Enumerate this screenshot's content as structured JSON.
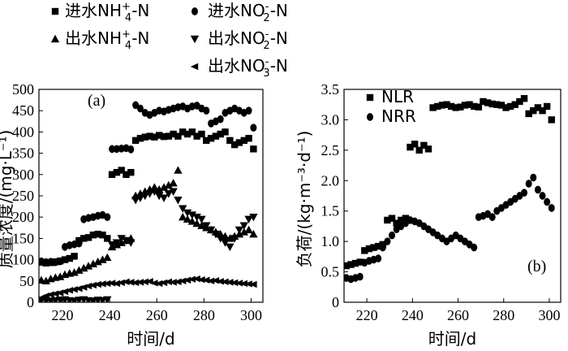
{
  "figure": {
    "panel_a_label": "(a)",
    "panel_b_label": "(b)"
  },
  "legend_a": [
    {
      "label_prefix": "进水NH",
      "sub": "4",
      "sup": "+",
      "suffix": "-N",
      "marker": "square"
    },
    {
      "label_prefix": "进水NO",
      "sub": "2",
      "sup": "-",
      "suffix": "-N",
      "marker": "circle"
    },
    {
      "label_prefix": "出水NH",
      "sub": "4",
      "sup": "+",
      "suffix": "-N",
      "marker": "triangle-up"
    },
    {
      "label_prefix": "出水NO",
      "sub": "2",
      "sup": "-",
      "suffix": "-N",
      "marker": "triangle-down"
    },
    {
      "label_prefix": "出水NO",
      "sub": "3",
      "sup": "-",
      "suffix": "-N",
      "marker": "triangle-left"
    }
  ],
  "legend_b": [
    {
      "label": "NLR",
      "marker": "square"
    },
    {
      "label": "NRR",
      "marker": "circle"
    }
  ],
  "chart_data": [
    {
      "type": "scatter",
      "panel": "(a)",
      "xlabel": "时间/d",
      "ylabel": "质量浓度/(mg·L⁻¹)",
      "xlim": [
        210,
        305
      ],
      "ylim": [
        0,
        500
      ],
      "xticks": [
        "220",
        "240",
        "260",
        "280",
        "300"
      ],
      "yticks": [
        "0",
        "50",
        "100",
        "150",
        "200",
        "250",
        "300",
        "350",
        "400",
        "450",
        "500"
      ],
      "series": [
        {
          "name": "进水NH4+-N",
          "marker": "square",
          "x": [
            211,
            213,
            215,
            217,
            219,
            221,
            223,
            225,
            227,
            229,
            231,
            233,
            235,
            237,
            239,
            241,
            243,
            245,
            247,
            249,
            251,
            253,
            255,
            257,
            259,
            261,
            263,
            265,
            267,
            269,
            271,
            273,
            275,
            277,
            279,
            281,
            283,
            285,
            287,
            289,
            291,
            293,
            295,
            297,
            299,
            301
          ],
          "y": [
            94,
            92,
            93,
            95,
            97,
            100,
            103,
            108,
            145,
            150,
            152,
            158,
            160,
            158,
            150,
            300,
            305,
            310,
            300,
            305,
            380,
            385,
            388,
            390,
            388,
            392,
            389,
            390,
            395,
            390,
            400,
            395,
            400,
            390,
            395,
            380,
            385,
            390,
            395,
            400,
            380,
            370,
            375,
            380,
            385,
            360
          ]
        },
        {
          "name": "进水NO2--N",
          "marker": "circle",
          "x": [
            211,
            213,
            215,
            217,
            219,
            221,
            223,
            225,
            227,
            229,
            231,
            233,
            235,
            237,
            239,
            241,
            243,
            245,
            247,
            249,
            251,
            253,
            255,
            257,
            259,
            261,
            263,
            265,
            267,
            269,
            271,
            273,
            275,
            277,
            279,
            281,
            283,
            285,
            287,
            289,
            291,
            293,
            295,
            297,
            299,
            301
          ],
          "y": [
            96,
            94,
            95,
            94,
            96,
            130,
            134,
            136,
            138,
            195,
            198,
            200,
            203,
            205,
            200,
            360,
            360,
            361,
            362,
            359,
            463,
            455,
            445,
            440,
            445,
            450,
            448,
            452,
            455,
            458,
            460,
            455,
            460,
            462,
            455,
            450,
            420,
            425,
            430,
            445,
            450,
            455,
            450,
            445,
            450,
            410
          ]
        },
        {
          "name": "出水NH4+-N",
          "marker": "triangle-up",
          "x": [
            211,
            213,
            215,
            217,
            219,
            221,
            223,
            225,
            227,
            229,
            231,
            233,
            235,
            237,
            239,
            241,
            243,
            245,
            247,
            249,
            251,
            253,
            255,
            257,
            259,
            261,
            263,
            265,
            267,
            269,
            271,
            273,
            275,
            277,
            279,
            281,
            283,
            285,
            287,
            289,
            291,
            293,
            295,
            297,
            299,
            301
          ],
          "y": [
            52,
            50,
            55,
            58,
            60,
            65,
            68,
            70,
            75,
            80,
            85,
            90,
            95,
            100,
            105,
            130,
            135,
            140,
            145,
            150,
            250,
            255,
            260,
            265,
            270,
            265,
            270,
            275,
            280,
            310,
            200,
            195,
            190,
            185,
            180,
            175,
            170,
            165,
            160,
            155,
            150,
            155,
            160,
            165,
            170,
            160
          ]
        },
        {
          "name": "出水NO2--N",
          "marker": "triangle-down",
          "x": [
            211,
            213,
            215,
            217,
            219,
            221,
            223,
            225,
            227,
            229,
            231,
            233,
            235,
            237,
            239,
            241,
            243,
            245,
            247,
            249,
            251,
            253,
            255,
            257,
            259,
            261,
            263,
            265,
            267,
            269,
            271,
            273,
            275,
            277,
            279,
            281,
            283,
            285,
            287,
            289,
            291,
            293,
            295,
            297,
            299,
            301
          ],
          "y": [
            5,
            4,
            3,
            4,
            5,
            6,
            4,
            3,
            5,
            6,
            4,
            3,
            5,
            4,
            6,
            135,
            140,
            150,
            145,
            140,
            240,
            245,
            250,
            255,
            260,
            250,
            245,
            255,
            260,
            240,
            220,
            210,
            205,
            200,
            195,
            180,
            170,
            160,
            150,
            140,
            130,
            150,
            170,
            180,
            195,
            200
          ]
        },
        {
          "name": "出水NO3--N",
          "marker": "triangle-left",
          "x": [
            211,
            213,
            215,
            217,
            219,
            221,
            223,
            225,
            227,
            229,
            231,
            233,
            235,
            237,
            239,
            241,
            243,
            245,
            247,
            249,
            251,
            253,
            255,
            257,
            259,
            261,
            263,
            265,
            267,
            269,
            271,
            273,
            275,
            277,
            279,
            281,
            283,
            285,
            287,
            289,
            291,
            293,
            295,
            297,
            299,
            301
          ],
          "y": [
            10,
            15,
            18,
            20,
            22,
            25,
            28,
            30,
            32,
            35,
            38,
            40,
            42,
            43,
            44,
            45,
            44,
            46,
            48,
            47,
            46,
            47,
            48,
            49,
            45,
            44,
            46,
            48,
            47,
            48,
            50,
            52,
            54,
            55,
            53,
            52,
            50,
            51,
            49,
            48,
            47,
            46,
            45,
            44,
            43,
            42
          ]
        }
      ]
    },
    {
      "type": "scatter",
      "panel": "(b)",
      "xlabel": "时间/d",
      "ylabel": "负荷/(kg·m⁻³·d⁻¹)",
      "xlim": [
        210,
        305
      ],
      "ylim": [
        0,
        3.5
      ],
      "xticks": [
        "220",
        "240",
        "260",
        "280",
        "300"
      ],
      "yticks": [
        "0",
        "0.5",
        "1.0",
        "1.5",
        "2.0",
        "2.5",
        "3.0",
        "3.5"
      ],
      "series": [
        {
          "name": "NLR",
          "marker": "square",
          "x": [
            211,
            213,
            215,
            217,
            219,
            221,
            223,
            225,
            227,
            229,
            231,
            233,
            235,
            237,
            239,
            241,
            243,
            245,
            247,
            249,
            251,
            253,
            255,
            257,
            259,
            261,
            263,
            265,
            267,
            269,
            271,
            273,
            275,
            277,
            279,
            281,
            283,
            285,
            287,
            289,
            291,
            293,
            295,
            297,
            299,
            301
          ],
          "y": [
            0.6,
            0.62,
            0.64,
            0.66,
            0.85,
            0.88,
            0.9,
            0.92,
            0.95,
            1.35,
            1.38,
            1.3,
            1.35,
            1.38,
            2.55,
            2.6,
            2.5,
            2.58,
            2.52,
            3.2,
            3.22,
            3.24,
            3.25,
            3.22,
            3.2,
            3.21,
            3.24,
            3.25,
            3.22,
            3.21,
            3.3,
            3.28,
            3.26,
            3.25,
            3.24,
            3.2,
            3.22,
            3.25,
            3.3,
            3.35,
            3.1,
            3.15,
            3.2,
            3.15,
            3.22,
            3.0
          ]
        },
        {
          "name": "NRR",
          "marker": "circle",
          "x": [
            211,
            213,
            215,
            217,
            219,
            221,
            223,
            225,
            227,
            229,
            231,
            233,
            235,
            237,
            239,
            241,
            243,
            245,
            247,
            249,
            251,
            253,
            255,
            257,
            259,
            261,
            263,
            265,
            267,
            269,
            271,
            273,
            275,
            277,
            279,
            281,
            283,
            285,
            287,
            289,
            291,
            293,
            295,
            297,
            299,
            301
          ],
          "y": [
            0.4,
            0.38,
            0.4,
            0.42,
            0.65,
            0.68,
            0.7,
            0.72,
            0.9,
            1.0,
            1.1,
            1.2,
            1.25,
            1.3,
            1.35,
            1.33,
            1.3,
            1.25,
            1.2,
            1.15,
            1.1,
            1.05,
            1.0,
            1.05,
            1.1,
            1.05,
            1.0,
            0.95,
            0.9,
            1.4,
            1.42,
            1.45,
            1.4,
            1.5,
            1.55,
            1.6,
            1.65,
            1.7,
            1.75,
            1.8,
            1.95,
            2.05,
            1.85,
            1.75,
            1.65,
            1.55
          ]
        }
      ]
    }
  ]
}
